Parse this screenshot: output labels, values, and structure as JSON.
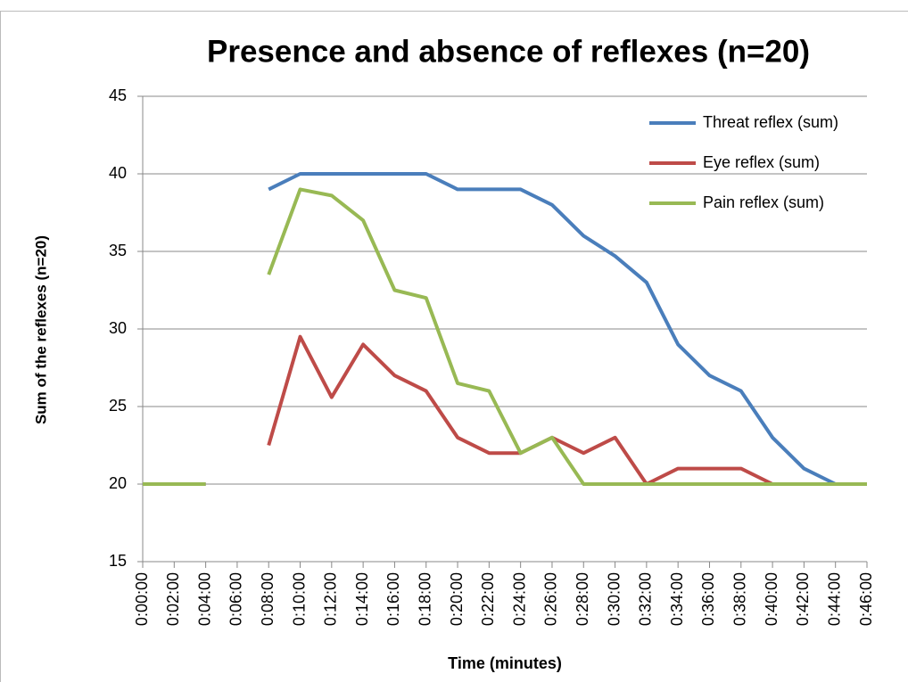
{
  "chart_data": {
    "type": "line",
    "title": "Presence and absence of reflexes (n=20)",
    "y_label": "Sum of the reflexes (n=20)",
    "x_label": "Time (minutes)",
    "categories": [
      "0:00:00",
      "0:02:00",
      "0:04:00",
      "0:06:00",
      "0:08:00",
      "0:10:00",
      "0:12:00",
      "0:14:00",
      "0:16:00",
      "0:18:00",
      "0:20:00",
      "0:22:00",
      "0:24:00",
      "0:26:00",
      "0:28:00",
      "0:30:00",
      "0:32:00",
      "0:34:00",
      "0:36:00",
      "0:38:00",
      "0:40:00",
      "0:42:00",
      "0:44:00",
      "0:46:00"
    ],
    "series": [
      {
        "name": "Threat reflex (sum)",
        "color": "#4a7ebb",
        "values": [
          20,
          20,
          20,
          null,
          39,
          40,
          40,
          40,
          40,
          40,
          39,
          39,
          39,
          38,
          36,
          34.7,
          33,
          29,
          27,
          26,
          23,
          21,
          20,
          20
        ]
      },
      {
        "name": "Eye reflex (sum)",
        "color": "#be4b48",
        "values": [
          20,
          20,
          20,
          null,
          22.5,
          29.5,
          25.6,
          29,
          27,
          26,
          23,
          22,
          22,
          23,
          22,
          23,
          20,
          21,
          21,
          21,
          20,
          20,
          20,
          20
        ]
      },
      {
        "name": "Pain reflex (sum)",
        "color": "#98b954",
        "values": [
          20,
          20,
          20,
          null,
          33.5,
          39,
          38.6,
          37,
          32.5,
          32,
          26.5,
          26,
          22,
          23,
          20,
          20,
          20,
          20,
          20,
          20,
          20,
          20,
          20,
          20
        ]
      }
    ],
    "ylim": [
      15,
      45
    ],
    "yticks": [
      15,
      20,
      25,
      30,
      35,
      40,
      45
    ],
    "grid": true,
    "legend": "top-right"
  }
}
